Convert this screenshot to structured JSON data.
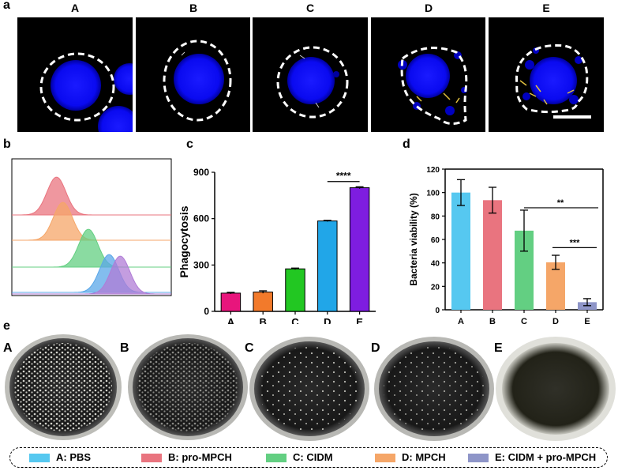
{
  "panel_letters": {
    "a": "a",
    "b": "b",
    "c": "c",
    "d": "d",
    "e": "e"
  },
  "panel_a": {
    "labels": [
      "A",
      "B",
      "C",
      "D",
      "E"
    ]
  },
  "panel_e": {
    "labels": [
      "A",
      "B",
      "C",
      "D",
      "E"
    ]
  },
  "legend": {
    "items": [
      {
        "label": "A: PBS",
        "color": "#56c8f0"
      },
      {
        "label": "B: pro-MPCH",
        "color": "#e9747f"
      },
      {
        "label": "C: CIDM",
        "color": "#63cf82"
      },
      {
        "label": "D: MPCH",
        "color": "#f5a668"
      },
      {
        "label": "E: CIDM + pro-MPCH",
        "color": "#8e95c8"
      }
    ]
  },
  "chart_data": [
    {
      "type": "area",
      "panel": "b",
      "series": [
        {
          "color": "#e9747f",
          "peak": 0.28
        },
        {
          "color": "#f5a668",
          "peak": 0.32
        },
        {
          "color": "#63cf82",
          "peak": 0.48
        },
        {
          "color": "#5aa7e8",
          "peak": 0.61
        },
        {
          "color": "#b07cd6",
          "peak": 0.68
        }
      ]
    },
    {
      "type": "bar",
      "panel": "c",
      "categories": [
        "A",
        "B",
        "C",
        "D",
        "E"
      ],
      "values": [
        118,
        125,
        275,
        585,
        800
      ],
      "errors": [
        5,
        8,
        5,
        4,
        6
      ],
      "colors": [
        "#e8157c",
        "#f27a2b",
        "#22c722",
        "#21a6e8",
        "#7e1de0"
      ],
      "ylabel": "Phagocytosis",
      "ylim": [
        0,
        900
      ],
      "yticks": [
        "0",
        "300",
        "600",
        "900"
      ],
      "annotation": "****"
    },
    {
      "type": "bar",
      "panel": "d",
      "categories": [
        "A",
        "B",
        "C",
        "D",
        "E"
      ],
      "values": [
        100,
        93.5,
        67.5,
        40.5,
        6.5
      ],
      "errors": [
        11,
        11,
        17.5,
        6,
        3
      ],
      "colors": [
        "#56c8f0",
        "#e9747f",
        "#63cf82",
        "#f5a668",
        "#8e95c8"
      ],
      "ylabel": "Bacteria viability (%)",
      "ylim": [
        0,
        120
      ],
      "yticks": [
        "0",
        "20",
        "40",
        "60",
        "80",
        "100",
        "120"
      ],
      "annotations": [
        "**",
        "***"
      ]
    }
  ]
}
